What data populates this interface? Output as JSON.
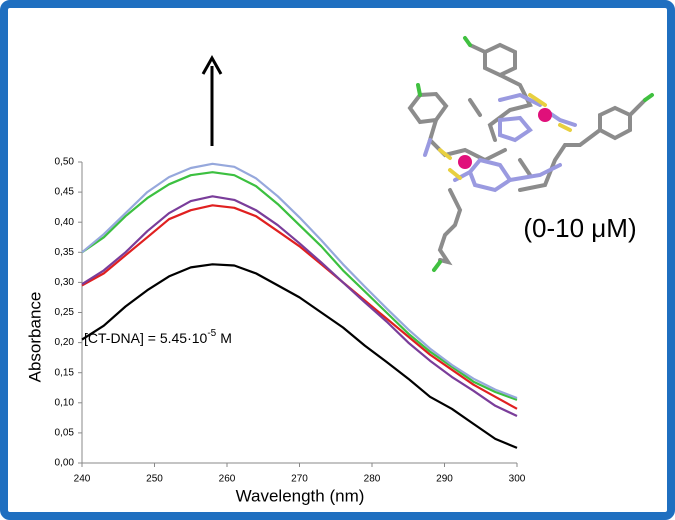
{
  "chart_data": {
    "type": "line",
    "x_label": "Wavelength (nm)",
    "y_label": "Absorbance",
    "annotation": {
      "text": "[CT-DNA] = 5.45·10",
      "superscript": "-5",
      "unit": "M"
    },
    "concentration_label": "(0-10 μM)",
    "x": [
      240,
      243,
      246,
      249,
      252,
      255,
      258,
      261,
      264,
      267,
      270,
      273,
      276,
      279,
      282,
      285,
      288,
      291,
      294,
      297,
      300
    ],
    "series": [
      {
        "color": "#000000",
        "values": [
          0.205,
          0.228,
          0.26,
          0.287,
          0.31,
          0.325,
          0.33,
          0.328,
          0.315,
          0.295,
          0.275,
          0.25,
          0.225,
          0.195,
          0.168,
          0.14,
          0.11,
          0.09,
          0.065,
          0.04,
          0.025
        ]
      },
      {
        "color": "#e02020",
        "values": [
          0.295,
          0.315,
          0.345,
          0.375,
          0.405,
          0.42,
          0.428,
          0.424,
          0.41,
          0.385,
          0.36,
          0.33,
          0.3,
          0.27,
          0.24,
          0.21,
          0.18,
          0.155,
          0.13,
          0.11,
          0.09
        ]
      },
      {
        "color": "#7a3d9a",
        "values": [
          0.297,
          0.32,
          0.35,
          0.385,
          0.415,
          0.435,
          0.443,
          0.437,
          0.42,
          0.395,
          0.365,
          0.333,
          0.3,
          0.267,
          0.235,
          0.2,
          0.17,
          0.143,
          0.12,
          0.095,
          0.078
        ]
      },
      {
        "color": "#3cc040",
        "values": [
          0.35,
          0.375,
          0.41,
          0.44,
          0.463,
          0.478,
          0.483,
          0.478,
          0.46,
          0.43,
          0.395,
          0.36,
          0.32,
          0.285,
          0.25,
          0.215,
          0.185,
          0.16,
          0.135,
          0.118,
          0.105
        ]
      },
      {
        "color": "#96a8dc",
        "values": [
          0.35,
          0.38,
          0.415,
          0.45,
          0.475,
          0.49,
          0.497,
          0.492,
          0.473,
          0.443,
          0.408,
          0.37,
          0.33,
          0.293,
          0.257,
          0.222,
          0.19,
          0.163,
          0.14,
          0.122,
          0.108
        ]
      }
    ],
    "xlim": [
      240,
      300
    ],
    "xticks": [
      240,
      250,
      260,
      270,
      280,
      290,
      300
    ],
    "ylim": [
      0,
      0.5
    ],
    "yticks": [
      {
        "value": 0,
        "label": "0,00"
      },
      {
        "value": 0.05,
        "label": "0,05"
      },
      {
        "value": 0.1,
        "label": "0,10"
      },
      {
        "value": 0.15,
        "label": "0,15"
      },
      {
        "value": 0.2,
        "label": "0,20"
      },
      {
        "value": 0.25,
        "label": "0,25"
      },
      {
        "value": 0.3,
        "label": "0,30"
      },
      {
        "value": 0.35,
        "label": "0,35"
      },
      {
        "value": 0.4,
        "label": "0,40"
      },
      {
        "value": 0.45,
        "label": "0,45"
      },
      {
        "value": 0.5,
        "label": "0,50"
      }
    ]
  }
}
